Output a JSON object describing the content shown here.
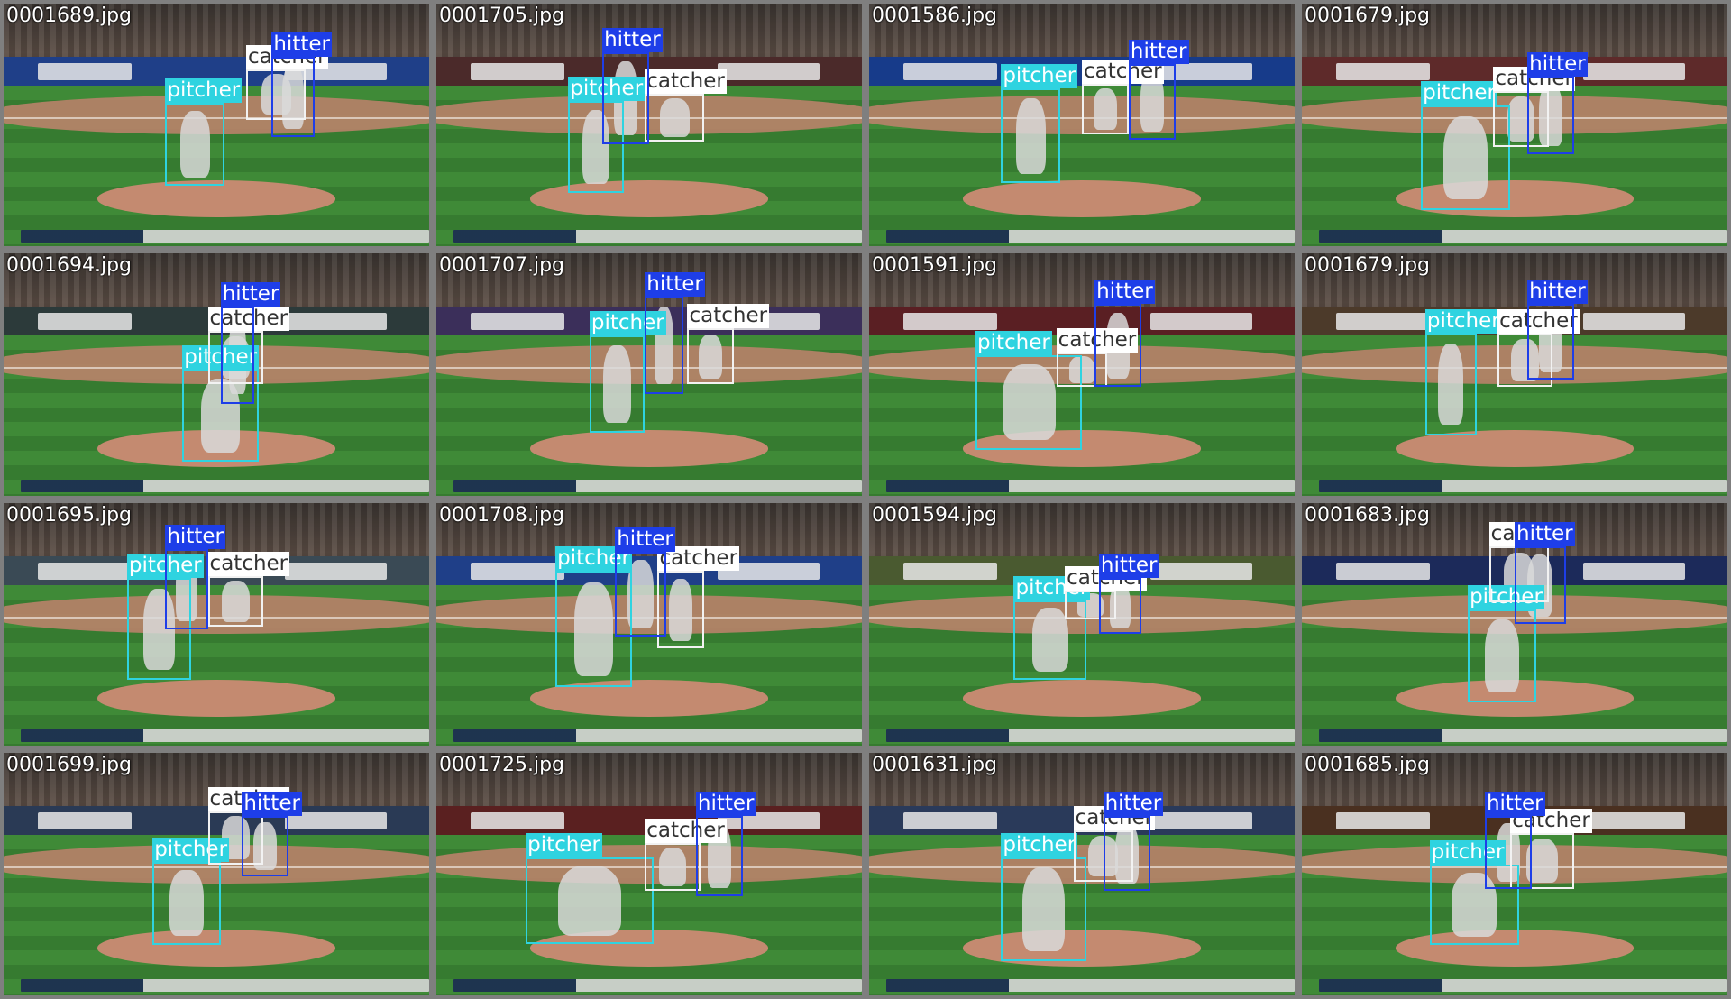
{
  "colors": {
    "pitcher": "#2fd3e0",
    "catcher": "#f2f2f2",
    "hitter": "#1e3ee8",
    "background": "#7f7f7f"
  },
  "tiles": [
    {
      "filename": "0001689.jpg"
    },
    {
      "filename": "0001705.jpg"
    },
    {
      "filename": "0001586.jpg"
    },
    {
      "filename": "0001679.jpg"
    },
    {
      "filename": "0001694.jpg"
    },
    {
      "filename": "0001707.jpg"
    },
    {
      "filename": "0001591.jpg"
    },
    {
      "filename": "0001679.jpg"
    },
    {
      "filename": "0001695.jpg"
    },
    {
      "filename": "0001708.jpg"
    },
    {
      "filename": "0001594.jpg"
    },
    {
      "filename": "0001683.jpg"
    },
    {
      "filename": "0001699.jpg"
    },
    {
      "filename": "0001725.jpg"
    },
    {
      "filename": "0001631.jpg"
    },
    {
      "filename": "0001685.jpg"
    }
  ],
  "labels": {
    "pitcher": "pitcher",
    "catcher": "catcher",
    "hitter": "hitter"
  }
}
